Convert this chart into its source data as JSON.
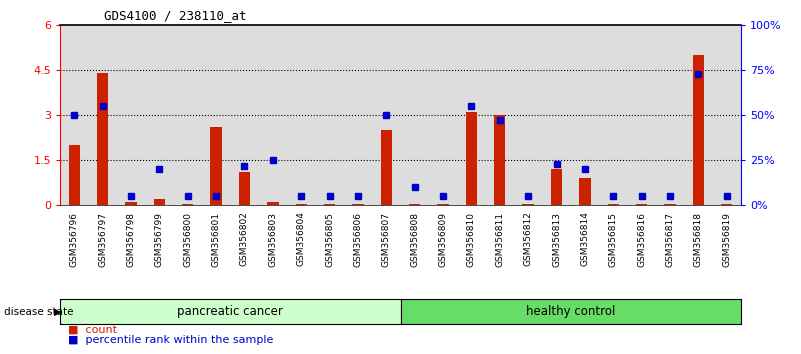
{
  "title": "GDS4100 / 238110_at",
  "samples": [
    "GSM356796",
    "GSM356797",
    "GSM356798",
    "GSM356799",
    "GSM356800",
    "GSM356801",
    "GSM356802",
    "GSM356803",
    "GSM356804",
    "GSM356805",
    "GSM356806",
    "GSM356807",
    "GSM356808",
    "GSM356809",
    "GSM356810",
    "GSM356811",
    "GSM356812",
    "GSM356813",
    "GSM356814",
    "GSM356815",
    "GSM356816",
    "GSM356817",
    "GSM356818",
    "GSM356819"
  ],
  "count": [
    2.0,
    4.4,
    0.1,
    0.2,
    0.05,
    2.6,
    1.1,
    0.1,
    0.05,
    0.05,
    0.05,
    2.5,
    0.05,
    0.05,
    3.1,
    3.0,
    0.05,
    1.2,
    0.9,
    0.05,
    0.05,
    0.05,
    5.0,
    0.05
  ],
  "percentile": [
    50,
    55,
    5,
    20,
    5,
    5,
    22,
    25,
    5,
    5,
    5,
    50,
    10,
    5,
    55,
    47,
    5,
    23,
    20,
    5,
    5,
    5,
    73,
    5
  ],
  "group_labels": [
    "pancreatic cancer",
    "healthy control"
  ],
  "group_colors": [
    "#ccffcc",
    "#66dd66"
  ],
  "ylim_left": [
    0,
    6
  ],
  "ylim_right": [
    0,
    100
  ],
  "yticks_left": [
    0,
    1.5,
    3.0,
    4.5,
    6.0
  ],
  "ytick_labels_left": [
    "0",
    "1.5",
    "3",
    "4.5",
    "6"
  ],
  "yticks_right": [
    0,
    25,
    50,
    75,
    100
  ],
  "ytick_labels_right": [
    "0%",
    "25%",
    "50%",
    "75%",
    "100%"
  ],
  "bar_color": "#cc2200",
  "dot_color": "#0000cc",
  "cell_bg_color": "#dddddd",
  "legend_count": "count",
  "legend_percentile": "percentile rank within the sample",
  "disease_state_label": "disease state"
}
